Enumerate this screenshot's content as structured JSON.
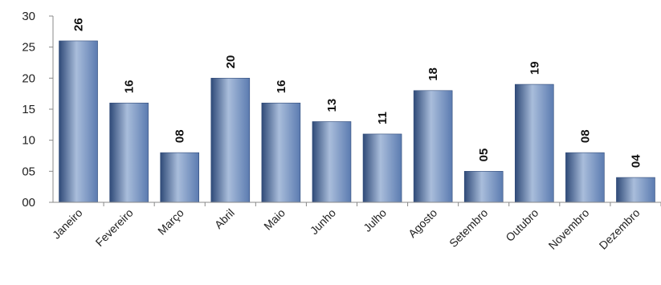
{
  "chart_data": {
    "type": "bar",
    "title": "",
    "xlabel": "",
    "ylabel": "",
    "categories": [
      "Janeiro",
      "Fevereiro",
      "Março",
      "Abril",
      "Maio",
      "Junho",
      "Julho",
      "Agosto",
      "Setembro",
      "Outubro",
      "Novembro",
      "Dezembro"
    ],
    "values": [
      26,
      16,
      8,
      20,
      16,
      13,
      11,
      18,
      5,
      19,
      8,
      4
    ],
    "data_labels": [
      "26",
      "16",
      "08",
      "20",
      "16",
      "13",
      "11",
      "18",
      "05",
      "19",
      "08",
      "04"
    ],
    "ylim": [
      0,
      30
    ],
    "yticks": [
      0,
      5,
      10,
      15,
      20,
      25,
      30
    ],
    "ytick_labels": [
      "00",
      "05",
      "10",
      "15",
      "20",
      "25",
      "30"
    ],
    "grid": false,
    "legend": "none",
    "bar_color": "#5b7bb0",
    "bar_color_light": "#a9bddb",
    "bar_color_dark": "#2f4a78"
  }
}
